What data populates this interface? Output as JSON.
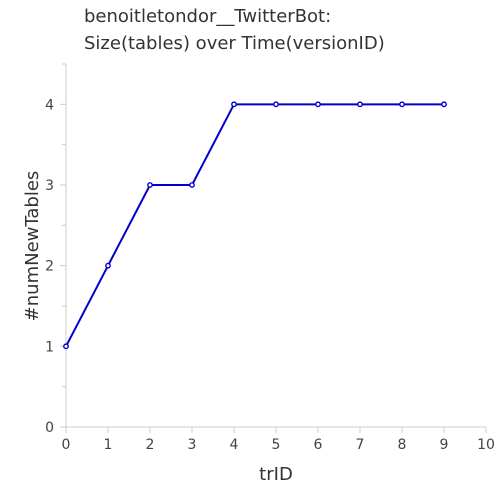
{
  "chart_data": {
    "type": "line",
    "title_lines": [
      "benoitletondor__TwitterBot:",
      "Size(tables) over Time(versionID)"
    ],
    "xlabel": "trID",
    "ylabel": "#numNewTables",
    "xlim": [
      0,
      10
    ],
    "ylim": [
      0,
      4.5
    ],
    "x_ticks": [
      0,
      1,
      2,
      3,
      4,
      5,
      6,
      7,
      8,
      9,
      10
    ],
    "y_ticks": [
      0,
      1,
      2,
      3,
      4
    ],
    "grid": false,
    "series": [
      {
        "x": [
          0,
          1,
          2,
          3,
          4,
          5,
          6,
          7,
          8,
          9
        ],
        "values": [
          1,
          2,
          3,
          3,
          4,
          4,
          4,
          4,
          4,
          4
        ],
        "color": "#0000cc"
      }
    ]
  }
}
